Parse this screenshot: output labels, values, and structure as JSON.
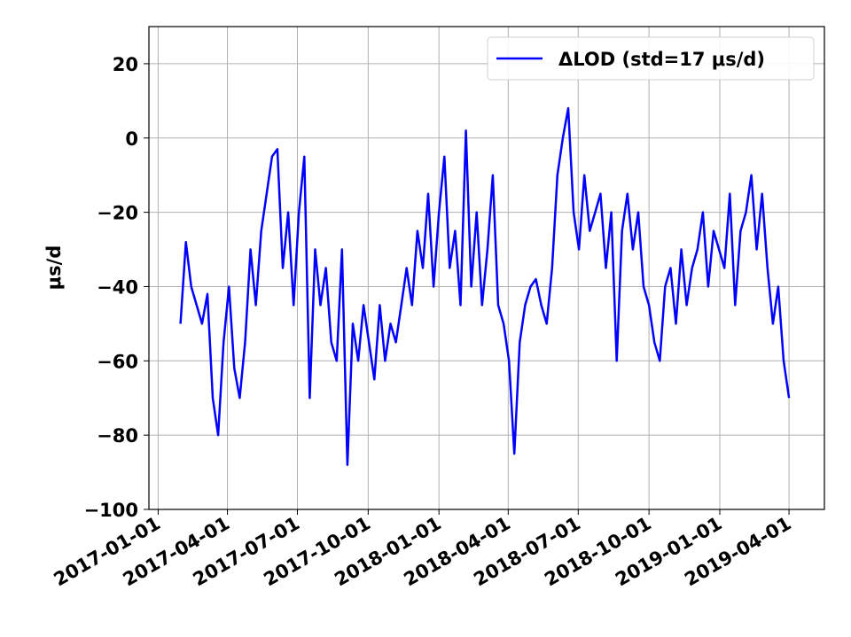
{
  "chart_data": {
    "type": "line",
    "ylabel": "μs/d",
    "x": [
      "2017-01-30",
      "2017-02-06",
      "2017-02-13",
      "2017-02-20",
      "2017-02-27",
      "2017-03-06",
      "2017-03-13",
      "2017-03-20",
      "2017-03-27",
      "2017-04-03",
      "2017-04-10",
      "2017-04-17",
      "2017-04-24",
      "2017-05-01",
      "2017-05-08",
      "2017-05-15",
      "2017-05-22",
      "2017-05-29",
      "2017-06-05",
      "2017-06-12",
      "2017-06-19",
      "2017-06-26",
      "2017-07-03",
      "2017-07-10",
      "2017-07-17",
      "2017-07-24",
      "2017-07-31",
      "2017-08-07",
      "2017-08-14",
      "2017-08-21",
      "2017-08-28",
      "2017-09-04",
      "2017-09-11",
      "2017-09-18",
      "2017-09-25",
      "2017-10-02",
      "2017-10-09",
      "2017-10-16",
      "2017-10-23",
      "2017-10-30",
      "2017-11-06",
      "2017-11-13",
      "2017-11-20",
      "2017-11-27",
      "2017-12-04",
      "2017-12-11",
      "2017-12-18",
      "2017-12-25",
      "2018-01-01",
      "2018-01-08",
      "2018-01-15",
      "2018-01-22",
      "2018-01-29",
      "2018-02-05",
      "2018-02-12",
      "2018-02-19",
      "2018-02-26",
      "2018-03-05",
      "2018-03-12",
      "2018-03-19",
      "2018-03-26",
      "2018-04-02",
      "2018-04-09",
      "2018-04-16",
      "2018-04-23",
      "2018-04-30",
      "2018-05-07",
      "2018-05-14",
      "2018-05-21",
      "2018-05-28",
      "2018-06-04",
      "2018-06-11",
      "2018-06-18",
      "2018-06-25",
      "2018-07-02",
      "2018-07-09",
      "2018-07-16",
      "2018-07-23",
      "2018-07-30",
      "2018-08-06",
      "2018-08-13",
      "2018-08-20",
      "2018-08-27",
      "2018-09-03",
      "2018-09-10",
      "2018-09-17",
      "2018-09-24",
      "2018-10-01",
      "2018-10-08",
      "2018-10-15",
      "2018-10-22",
      "2018-10-29",
      "2018-11-05",
      "2018-11-12",
      "2018-11-19",
      "2018-11-26",
      "2018-12-03",
      "2018-12-10",
      "2018-12-17",
      "2018-12-24",
      "2018-12-31",
      "2019-01-07",
      "2019-01-14",
      "2019-01-21",
      "2019-01-28",
      "2019-02-04",
      "2019-02-11",
      "2019-02-18",
      "2019-02-25",
      "2019-03-04",
      "2019-03-11",
      "2019-03-18",
      "2019-03-25",
      "2019-04-01"
    ],
    "series": [
      {
        "name": "ΔLOD (std=17 μs/d)",
        "color": "#0000ff",
        "values": [
          -50,
          -28,
          -40,
          -45,
          -50,
          -42,
          -70,
          -80,
          -55,
          -40,
          -62,
          -70,
          -55,
          -30,
          -45,
          -25,
          -15,
          -5,
          -3,
          -35,
          -20,
          -45,
          -20,
          -5,
          -70,
          -30,
          -45,
          -35,
          -55,
          -60,
          -30,
          -88,
          -50,
          -60,
          -45,
          -55,
          -65,
          -45,
          -60,
          -50,
          -55,
          -45,
          -35,
          -45,
          -25,
          -35,
          -15,
          -40,
          -20,
          -5,
          -35,
          -25,
          -45,
          2,
          -40,
          -20,
          -45,
          -30,
          -10,
          -45,
          -50,
          -60,
          -85,
          -55,
          -45,
          -40,
          -38,
          -45,
          -50,
          -35,
          -10,
          0,
          8,
          -20,
          -30,
          -10,
          -25,
          -20,
          -15,
          -35,
          -20,
          -60,
          -25,
          -15,
          -30,
          -20,
          -40,
          -45,
          -55,
          -60,
          -40,
          -35,
          -50,
          -30,
          -45,
          -35,
          -30,
          -20,
          -40,
          -25,
          -30,
          -35,
          -15,
          -45,
          -25,
          -20,
          -10,
          -30,
          -15,
          -35,
          -50,
          -40,
          -60,
          -70
        ]
      }
    ],
    "xlim": [
      "2016-12-20",
      "2019-05-17"
    ],
    "xticks": [
      "2017-01-01",
      "2017-04-01",
      "2017-07-01",
      "2017-10-01",
      "2018-01-01",
      "2018-04-01",
      "2018-07-01",
      "2018-10-01",
      "2019-01-01",
      "2019-04-01"
    ],
    "ylim": [
      -100,
      30
    ],
    "yticks": [
      {
        "value": -100,
        "label": "−100"
      },
      {
        "value": -80,
        "label": "−80"
      },
      {
        "value": -60,
        "label": "−60"
      },
      {
        "value": -40,
        "label": "−40"
      },
      {
        "value": -20,
        "label": "−20"
      },
      0,
      20
    ],
    "grid": true,
    "legend": "upper right"
  }
}
